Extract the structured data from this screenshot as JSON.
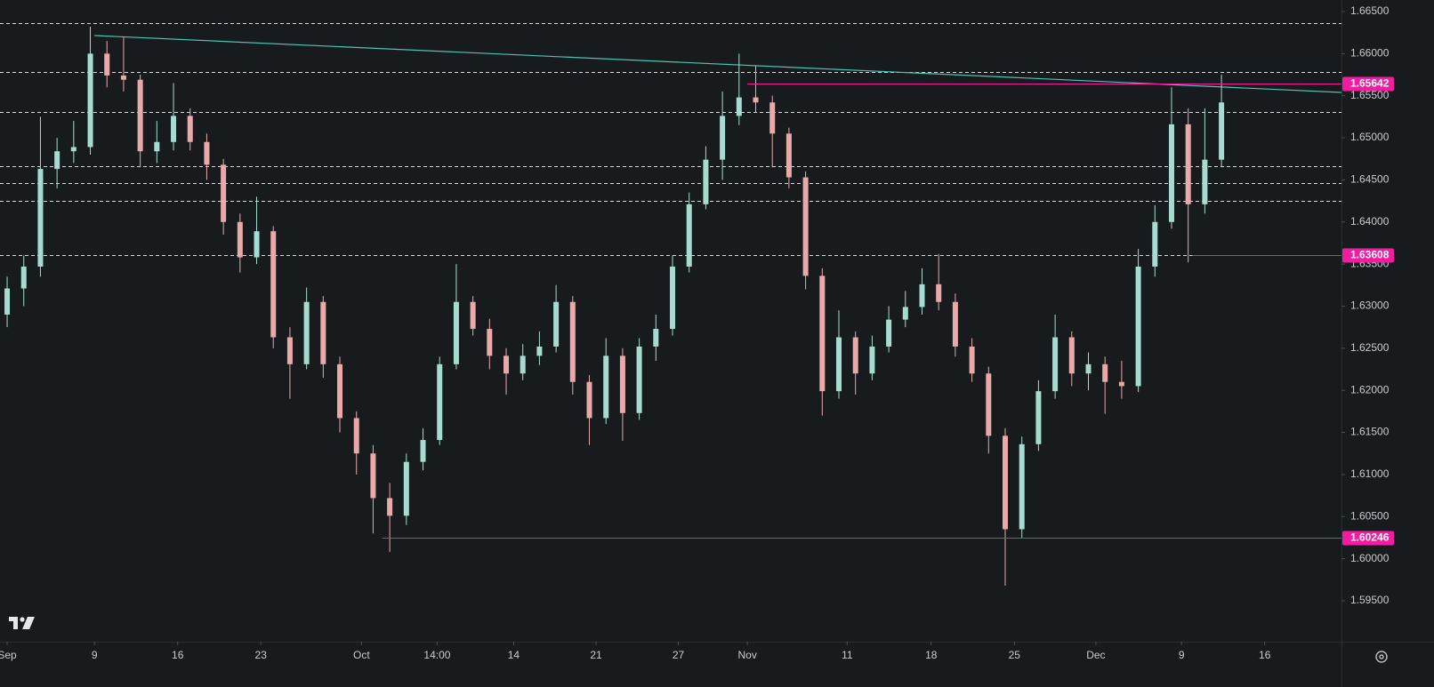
{
  "chart_data": {
    "type": "candlestick",
    "x": [
      0,
      2,
      4,
      6,
      8,
      10,
      12,
      14,
      16,
      18,
      20,
      22,
      24,
      26,
      28,
      30,
      32,
      34,
      36,
      38,
      40,
      42,
      44,
      46,
      48,
      50,
      52,
      54,
      56,
      58,
      60,
      62,
      64,
      66,
      68,
      70,
      72,
      74,
      76,
      78,
      80,
      82,
      84,
      86,
      88,
      90,
      92,
      94,
      96,
      98,
      100,
      102,
      104,
      106,
      108,
      110,
      112,
      114,
      116,
      118,
      120,
      122,
      124,
      126,
      128,
      130,
      132,
      134,
      136,
      138,
      140,
      142,
      144,
      146
    ],
    "open": [
      1.629,
      1.6321,
      1.6347,
      1.6463,
      1.6484,
      1.6489,
      1.66,
      1.6574,
      1.6569,
      1.6484,
      1.6495,
      1.6526,
      1.6495,
      1.6468,
      1.64,
      1.6358,
      1.6389,
      1.6263,
      1.6231,
      1.6305,
      1.6231,
      1.6167,
      1.6125,
      1.6072,
      1.6051,
      1.6115,
      1.6141,
      1.6231,
      1.6305,
      1.6273,
      1.6241,
      1.622,
      1.6241,
      1.6252,
      1.6305,
      1.621,
      1.6167,
      1.6241,
      1.6173,
      1.6252,
      1.6273,
      1.6347,
      1.6421,
      1.6474,
      1.6526,
      1.6548,
      1.6542,
      1.6505,
      1.6453,
      1.6336,
      1.6199,
      1.6263,
      1.622,
      1.6252,
      1.6284,
      1.6299,
      1.6326,
      1.6305,
      1.6252,
      1.622,
      1.6146,
      1.6035,
      1.6136,
      1.6199,
      1.6263,
      1.622,
      1.6231,
      1.621,
      1.6205,
      1.6347,
      1.64,
      1.6516,
      1.6421,
      1.6474
    ],
    "high": [
      1.6335,
      1.636,
      1.6525,
      1.65,
      1.652,
      1.6632,
      1.6615,
      1.662,
      1.6575,
      1.652,
      1.6565,
      1.6535,
      1.6505,
      1.6475,
      1.641,
      1.643,
      1.6395,
      1.6275,
      1.6322,
      1.6312,
      1.624,
      1.6175,
      1.6135,
      1.609,
      1.6125,
      1.6155,
      1.624,
      1.635,
      1.6312,
      1.6285,
      1.625,
      1.6255,
      1.627,
      1.6325,
      1.6312,
      1.6218,
      1.6262,
      1.625,
      1.6262,
      1.629,
      1.636,
      1.6435,
      1.649,
      1.6555,
      1.66,
      1.6585,
      1.655,
      1.6512,
      1.646,
      1.6345,
      1.6295,
      1.627,
      1.6265,
      1.63,
      1.6318,
      1.6345,
      1.6362,
      1.6315,
      1.6262,
      1.6228,
      1.6155,
      1.6145,
      1.6212,
      1.629,
      1.627,
      1.6245,
      1.624,
      1.6235,
      1.6368,
      1.642,
      1.656,
      1.6535,
      1.6535,
      1.6575
    ],
    "low": [
      1.6275,
      1.63,
      1.6335,
      1.644,
      1.647,
      1.648,
      1.656,
      1.6555,
      1.6465,
      1.647,
      1.6485,
      1.6485,
      1.645,
      1.6385,
      1.634,
      1.635,
      1.625,
      1.619,
      1.6225,
      1.6215,
      1.615,
      1.61,
      1.603,
      1.6008,
      1.604,
      1.6105,
      1.6135,
      1.6225,
      1.6265,
      1.6225,
      1.6195,
      1.6212,
      1.623,
      1.6245,
      1.6195,
      1.6135,
      1.616,
      1.614,
      1.6165,
      1.6235,
      1.6265,
      1.634,
      1.6415,
      1.645,
      1.6515,
      1.653,
      1.6465,
      1.644,
      1.632,
      1.617,
      1.619,
      1.6195,
      1.6212,
      1.6245,
      1.6275,
      1.629,
      1.6295,
      1.624,
      1.621,
      1.6125,
      1.5968,
      1.6025,
      1.6128,
      1.619,
      1.6205,
      1.62,
      1.6172,
      1.619,
      1.6198,
      1.6335,
      1.6392,
      1.6352,
      1.641,
      1.6465
    ],
    "close": [
      1.6321,
      1.6347,
      1.6463,
      1.6484,
      1.6489,
      1.66,
      1.6574,
      1.6569,
      1.6484,
      1.6495,
      1.6526,
      1.6495,
      1.6468,
      1.64,
      1.6358,
      1.6389,
      1.6263,
      1.6231,
      1.6305,
      1.6231,
      1.6167,
      1.6125,
      1.6072,
      1.6051,
      1.6115,
      1.6141,
      1.6231,
      1.6305,
      1.6273,
      1.6241,
      1.622,
      1.6241,
      1.6252,
      1.6305,
      1.621,
      1.6167,
      1.6241,
      1.6173,
      1.6252,
      1.6273,
      1.6347,
      1.6421,
      1.6474,
      1.6526,
      1.6548,
      1.6542,
      1.6505,
      1.6453,
      1.6336,
      1.6199,
      1.6263,
      1.622,
      1.6252,
      1.6284,
      1.6299,
      1.6326,
      1.6305,
      1.6252,
      1.622,
      1.6146,
      1.6035,
      1.6136,
      1.6199,
      1.6263,
      1.622,
      1.6231,
      1.621,
      1.6205,
      1.6347,
      1.64,
      1.6516,
      1.6421,
      1.6474,
      1.6542
    ],
    "up_color": "#a6dbd2",
    "down_color": "#eaa9a9",
    "xlim": [
      -0.86,
      160.43
    ],
    "xticks": [
      {
        "value": 0,
        "label": "Sep"
      },
      {
        "value": 10.5,
        "label": "9"
      },
      {
        "value": 20.5,
        "label": "16"
      },
      {
        "value": 30.5,
        "label": "23"
      },
      {
        "value": 42.6,
        "label": "Oct"
      },
      {
        "value": 51.7,
        "label": "14:00"
      },
      {
        "value": 60.9,
        "label": "14"
      },
      {
        "value": 70.8,
        "label": "21"
      },
      {
        "value": 80.7,
        "label": "27"
      },
      {
        "value": 89,
        "label": "Nov"
      },
      {
        "value": 101,
        "label": "11"
      },
      {
        "value": 111.1,
        "label": "18"
      },
      {
        "value": 121.1,
        "label": "25"
      },
      {
        "value": 130.9,
        "label": "Dec"
      },
      {
        "value": 141.2,
        "label": "9"
      },
      {
        "value": 151.2,
        "label": "16"
      }
    ],
    "ylim": [
      1.59014,
      1.66637
    ],
    "yticks": [
      {
        "value": 1.595,
        "label": "1.59500"
      },
      {
        "value": 1.6,
        "label": "1.60000"
      },
      {
        "value": 1.605,
        "label": "1.60500"
      },
      {
        "value": 1.61,
        "label": "1.61000"
      },
      {
        "value": 1.615,
        "label": "1.61500"
      },
      {
        "value": 1.62,
        "label": "1.62000"
      },
      {
        "value": 1.625,
        "label": "1.62500"
      },
      {
        "value": 1.63,
        "label": "1.63000"
      },
      {
        "value": 1.635,
        "label": "1.63500"
      },
      {
        "value": 1.64,
        "label": "1.64000"
      },
      {
        "value": 1.645,
        "label": "1.64500"
      },
      {
        "value": 1.65,
        "label": "1.65000"
      },
      {
        "value": 1.655,
        "label": "1.65500"
      },
      {
        "value": 1.66,
        "label": "1.66000"
      },
      {
        "value": 1.665,
        "label": "1.66500"
      }
    ],
    "dashed_levels": [
      1.66363,
      1.65782,
      1.65307,
      1.64663,
      1.64462,
      1.64251,
      1.63608
    ],
    "levels": [
      {
        "value": 1.65642,
        "x0": 89
      },
      {
        "value": 1.63608,
        "x0": 142.5
      },
      {
        "value": 1.60246,
        "x0": 45.1
      }
    ],
    "level_color": "#f21ca0",
    "trendline": {
      "x": [
        10.5,
        160.43
      ],
      "y": [
        1.66215,
        1.65539
      ],
      "color": "#4fc3b4"
    }
  }
}
